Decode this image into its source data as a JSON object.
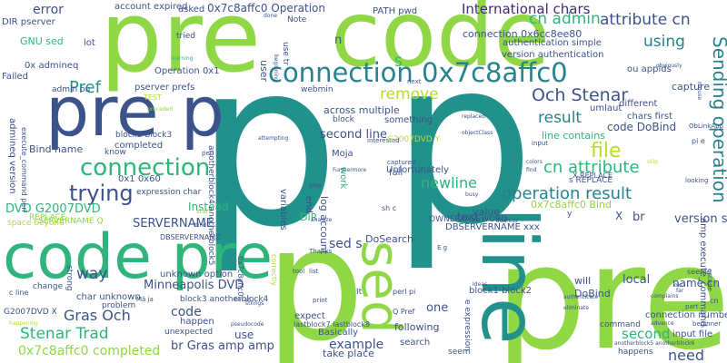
{
  "cloud": {
    "palette": {
      "lime": "#8fd744",
      "teal": "#21918c",
      "navy": "#3b528b",
      "purple": "#482878",
      "green": "#2fb47c",
      "light_green": "#b5de2b",
      "cyan": "#26828e"
    },
    "words": [
      "p",
      "p",
      "pre",
      "code",
      "code pre",
      "pre p",
      "line",
      "sed",
      "connection 0x7c8affc0",
      "connection",
      "trying",
      "Och Stenar",
      "operation result",
      "Sending operation",
      "file",
      "result",
      "remove",
      "cn admin",
      "attribute cn",
      "International chars",
      "using",
      "Pref",
      "cn attribute",
      "newline",
      "Stenar Trad",
      "0x7c8affc0 completed",
      "Gras Och",
      "way",
      "code",
      "need",
      "second",
      "example",
      "br Gras amp amp",
      "DVD G2007DVD",
      "SERVERNAME",
      "Minneapolis DVD",
      "sed s",
      "one",
      "text",
      "error",
      "account expired",
      "asked",
      "0x7c8affc0 Operation",
      "Note",
      "PATH pwd",
      "GNU sed",
      "lot",
      "connection 0x6cc8ee80",
      "authentication simple",
      "version authentication",
      "ou appids",
      "version seems",
      "Failed",
      "DIR pserver",
      "0x admineq",
      "Operation 0x1",
      "pserver prefs",
      "admin ou",
      "capture",
      "different",
      "Bind name",
      "across multiple",
      "second line",
      "line contains",
      "chars first",
      "code DoBind",
      "Moja",
      "Unfortunately",
      "block",
      "something",
      "completed",
      "expression char",
      "0x1 0x60",
      "Instead",
      "DIR",
      "log account",
      "DoSearch",
      "DBSERVERNAME xxx",
      "OWNERPASSWORD",
      "value",
      "0x7c8affc0 Bind",
      "br",
      "X",
      "s REPLACE",
      "name cn",
      "local",
      "connection number",
      "input file",
      "following",
      "search",
      "take place",
      "Basically",
      "expect",
      "lastblock7 lastblock8",
      "block3 anotherblock4",
      "happen",
      "unexpected",
      "use",
      "change",
      "problem",
      "char unknown",
      "unknown option",
      "strong",
      "G2007DVD X",
      "space beyond",
      "REPLACE",
      "know",
      "block2 block3",
      "perl",
      "webmin",
      "tried",
      "learning",
      "umlaut",
      "seem",
      "fail",
      "end",
      "variables",
      "work",
      "captured",
      "admineq version",
      "execute_command perl",
      "amp execute_command",
      "anotherblock4 anotherblock5",
      "S",
      "n",
      "user",
      "use tr",
      "next",
      "done",
      "beginning",
      "obviously",
      "interested",
      "attempting",
      "preceded",
      "TEST",
      "Thanks",
      "print",
      "block1 block2",
      "DoBind",
      "will",
      "command",
      "seems",
      "advance",
      "beginner",
      "input",
      "pi e",
      "ObLinkApp",
      "colors",
      "find",
      "looking",
      "skip",
      "address",
      "busy",
      "escape",
      "mouse",
      "part",
      "objectClass",
      "replaced",
      "tool",
      "list",
      "Ideas",
      "It",
      "Q Pref",
      "perl pi",
      "e expression",
      "bin sh",
      "pseudocode",
      "eliminate",
      "authenticate",
      "anotherblock5 anotherblock6",
      "grep",
      "Furthermore",
      "analyze",
      "happening",
      "correctly",
      "start",
      "bind",
      "strings",
      "c line",
      "cn",
      "G2007DVD Y",
      "y",
      "X REPLACE",
      "SERVERNAME Q",
      "complains",
      "far",
      "happens",
      "ok",
      "DBSERVERNAME",
      "E g",
      "sh c",
      "Mã ja",
      "0x7c8affc0"
    ]
  }
}
